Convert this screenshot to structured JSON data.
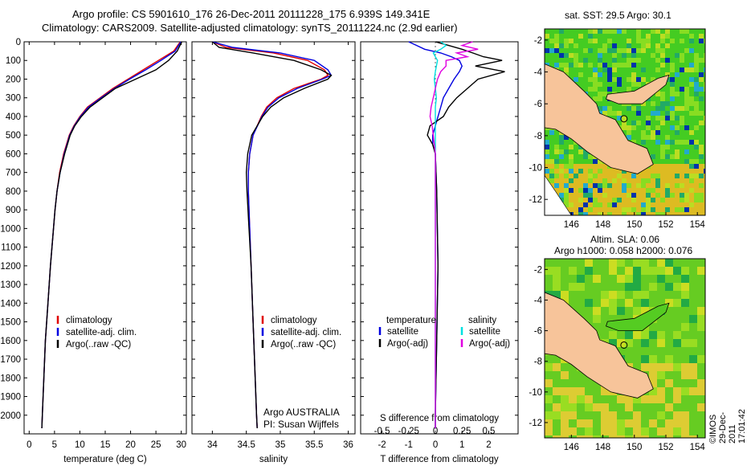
{
  "title": {
    "line1": "Argo profile: CS 5901610_176 26-Dec-2011 20111228_175 6.939S 149.341E",
    "line2": "Climatology: CARS2009. Satellite-adjusted climatology: synTS_20111224.nc (2.9d earlier)"
  },
  "map_top_title": "sat. SST: 29.5 Argo: 30.1",
  "map_bottom_title1": "Altim. SLA: 0.06",
  "map_bottom_title2": "Argo h1000: 0.058 h2000: 0.076",
  "credit": "©IMOS 29-Dec-2011 17:01:42",
  "argo_note1": "Argo AUSTRALIA",
  "argo_note2": "PI: Susan Wijffels",
  "colors": {
    "climatology": "#e00000",
    "satellite": "#0000e0",
    "argo": "#000000",
    "sal_satellite": "#00e0e0",
    "sal_argo": "#e000e0",
    "land": "#f7c49a"
  },
  "chart_data": [
    {
      "type": "line",
      "name": "temperature panel",
      "xlabel": "temperature (deg C)",
      "ylim": [
        0,
        2100
      ],
      "xlim": [
        -1,
        31
      ],
      "xticks": [
        0,
        5,
        10,
        15,
        20,
        25,
        30
      ],
      "yticks": [
        0,
        100,
        200,
        300,
        400,
        500,
        600,
        700,
        800,
        900,
        1000,
        1100,
        1200,
        1300,
        1400,
        1500,
        1600,
        1700,
        1800,
        1900,
        2000
      ],
      "legend": [
        "climatology",
        "satellite-adj. clim.",
        "Argo(..raw -QC)"
      ],
      "depth": [
        0,
        50,
        100,
        150,
        200,
        250,
        300,
        350,
        400,
        450,
        500,
        600,
        700,
        800,
        900,
        1000,
        1200,
        1400,
        1600,
        1800,
        2000,
        2070
      ],
      "series": [
        {
          "name": "climatology",
          "values": [
            29.8,
            28.5,
            25.5,
            22.5,
            19.5,
            16.5,
            14.0,
            11.5,
            10.0,
            8.8,
            7.9,
            6.8,
            6.0,
            5.5,
            5.1,
            4.8,
            4.2,
            3.7,
            3.2,
            2.9,
            2.6,
            2.5
          ]
        },
        {
          "name": "satellite-adj. clim.",
          "values": [
            29.9,
            28.8,
            26.0,
            23.0,
            19.8,
            16.8,
            14.2,
            11.7,
            10.1,
            8.9,
            8.0,
            6.9,
            6.1,
            5.5,
            5.1,
            4.8,
            4.2,
            3.7,
            3.2,
            2.9,
            2.6,
            2.5
          ]
        },
        {
          "name": "Argo(..raw -QC)",
          "values": [
            30.1,
            29.2,
            27.5,
            25.0,
            21.0,
            17.0,
            14.5,
            12.0,
            10.3,
            9.0,
            8.1,
            7.0,
            6.1,
            5.5,
            5.1,
            4.8,
            4.2,
            3.7,
            3.2,
            2.9,
            2.6,
            2.5
          ]
        }
      ]
    },
    {
      "type": "line",
      "name": "salinity panel",
      "xlabel": "salinity",
      "ylim": [
        0,
        2100
      ],
      "xlim": [
        33.7,
        36.1
      ],
      "xticks": [
        34,
        34.5,
        35,
        35.5,
        36
      ],
      "legend": [
        "climatology",
        "satellite-adj. clim.",
        "Argo(..raw -QC)"
      ],
      "depth": [
        0,
        30,
        60,
        100,
        150,
        180,
        200,
        250,
        300,
        350,
        400,
        500,
        600,
        700,
        800,
        1000,
        1200,
        1500,
        1800,
        2000,
        2070
      ],
      "series": [
        {
          "name": "climatology",
          "values": [
            34.0,
            34.2,
            34.9,
            35.4,
            35.65,
            35.7,
            35.6,
            35.2,
            34.95,
            34.8,
            34.72,
            34.6,
            34.55,
            34.53,
            34.53,
            34.55,
            34.57,
            34.6,
            34.63,
            34.65,
            34.66
          ]
        },
        {
          "name": "satellite-adj. clim.",
          "values": [
            34.0,
            34.3,
            35.0,
            35.5,
            35.7,
            35.75,
            35.62,
            35.25,
            34.98,
            34.82,
            34.73,
            34.6,
            34.55,
            34.53,
            34.53,
            34.55,
            34.57,
            34.6,
            34.63,
            34.65,
            34.66
          ]
        },
        {
          "name": "Argo(..raw -QC)",
          "values": [
            34.0,
            34.1,
            34.6,
            35.2,
            35.6,
            35.75,
            35.7,
            35.35,
            35.05,
            34.86,
            34.74,
            34.58,
            34.52,
            34.5,
            34.51,
            34.54,
            34.57,
            34.6,
            34.63,
            34.65,
            34.66
          ]
        }
      ]
    },
    {
      "type": "line",
      "name": "difference panel",
      "xlabel": "T difference from climatology",
      "xlabel_top": "S difference from climatology",
      "xticks_T": [
        -2,
        -1,
        0,
        1,
        2
      ],
      "xticks_S": [
        -0.5,
        -0.25,
        0,
        0.25,
        0.5
      ],
      "xlim_T": [
        -2.8,
        3.1
      ],
      "legend_headers": [
        "temperature",
        "salinity"
      ],
      "legend": [
        "satellite",
        "Argo(-adj)",
        "satellite",
        "Argo(-adj)"
      ],
      "depth": [
        0,
        20,
        40,
        60,
        80,
        100,
        130,
        160,
        200,
        250,
        300,
        350,
        400,
        450,
        500,
        550,
        600,
        800,
        1200,
        1600,
        2000,
        2070
      ],
      "series": [
        {
          "name": "T satellite",
          "values": [
            -1.0,
            -0.7,
            -0.4,
            0.2,
            0.6,
            0.9,
            1.0,
            0.9,
            0.7,
            0.5,
            0.3,
            0.2,
            0.1,
            0.0,
            -0.1,
            -0.1,
            0.0,
            0.05,
            0.1,
            0.05,
            0.0,
            0.0
          ]
        },
        {
          "name": "T Argo(-adj)",
          "values": [
            0.0,
            0.5,
            1.0,
            1.4,
            1.8,
            2.5,
            1.5,
            2.6,
            1.6,
            1.2,
            0.8,
            0.5,
            0.3,
            -0.2,
            -0.3,
            -0.1,
            0.0,
            0.05,
            0.1,
            0.05,
            0.0,
            0.0
          ]
        },
        {
          "name": "S satellite",
          "values": [
            0.05,
            0.1,
            0.05,
            -0.02,
            0.0,
            0.02,
            0.01,
            0.0,
            -0.01,
            0.0,
            0.01,
            0.0,
            0.0,
            0.0,
            0.0,
            0.0,
            0.0,
            0.0,
            0.0,
            0.0,
            0.0,
            0.0
          ]
        },
        {
          "name": "S Argo(-adj)",
          "values": [
            0.35,
            0.25,
            0.4,
            0.2,
            0.3,
            0.1,
            0.1,
            0.05,
            0.02,
            0.0,
            -0.02,
            -0.04,
            -0.05,
            -0.03,
            -0.02,
            -0.01,
            0.0,
            0.0,
            0.0,
            0.0,
            0.0,
            0.0
          ]
        }
      ]
    },
    {
      "type": "heatmap",
      "name": "sat. SST map",
      "lon_ticks": [
        146,
        148,
        150,
        152,
        154
      ],
      "lat_ticks": [
        -2,
        -4,
        -6,
        -8,
        -10,
        -12
      ],
      "lon_range": [
        144.3,
        154.5
      ],
      "lat_range": [
        -13,
        -1.3
      ],
      "marker": {
        "lon": 149.341,
        "lat": -6.939
      }
    },
    {
      "type": "heatmap",
      "name": "Altim. SLA map",
      "lon_ticks": [
        146,
        148,
        150,
        152,
        154
      ],
      "lat_ticks": [
        -2,
        -4,
        -6,
        -8,
        -10,
        -12
      ],
      "lon_range": [
        144.3,
        154.5
      ],
      "lat_range": [
        -13,
        -1.3
      ],
      "marker": {
        "lon": 149.341,
        "lat": -6.939
      }
    }
  ]
}
